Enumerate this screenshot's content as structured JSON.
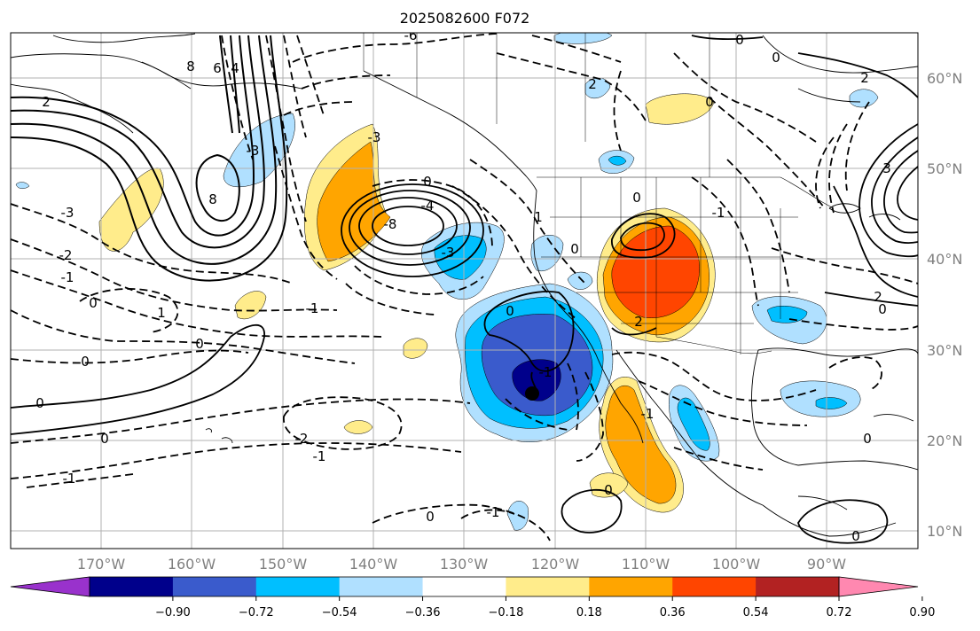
{
  "title": "2025082600 F072",
  "lat_labels": [
    "60°N",
    "50°N",
    "40°N",
    "30°N",
    "20°N",
    "10°N"
  ],
  "lon_labels": [
    "170°W",
    "160°W",
    "150°W",
    "140°W",
    "130°W",
    "120°W",
    "110°W",
    "100°W",
    "90°W"
  ],
  "colorbar": {
    "tick_labels": [
      "−0.90",
      "−0.72",
      "−0.54",
      "−0.36",
      "−0.18",
      "0.18",
      "0.36",
      "0.54",
      "0.72",
      "0.90"
    ],
    "colors": [
      "#9932cc",
      "#00008b",
      "#3a5bcc",
      "#00bfff",
      "#b0e0ff",
      "#ffffff",
      "#ffec8b",
      "#ffa500",
      "#ff4500",
      "#b22222",
      "#ff88b0"
    ]
  },
  "contour_labels": [
    "0",
    "-1",
    "-2",
    "-3",
    "2",
    "4",
    "6",
    "8",
    "0",
    "-2",
    "-1",
    "0",
    "1",
    "2",
    "-3",
    "3",
    "-4",
    "-6",
    "-8"
  ],
  "marker": "black-dot"
}
